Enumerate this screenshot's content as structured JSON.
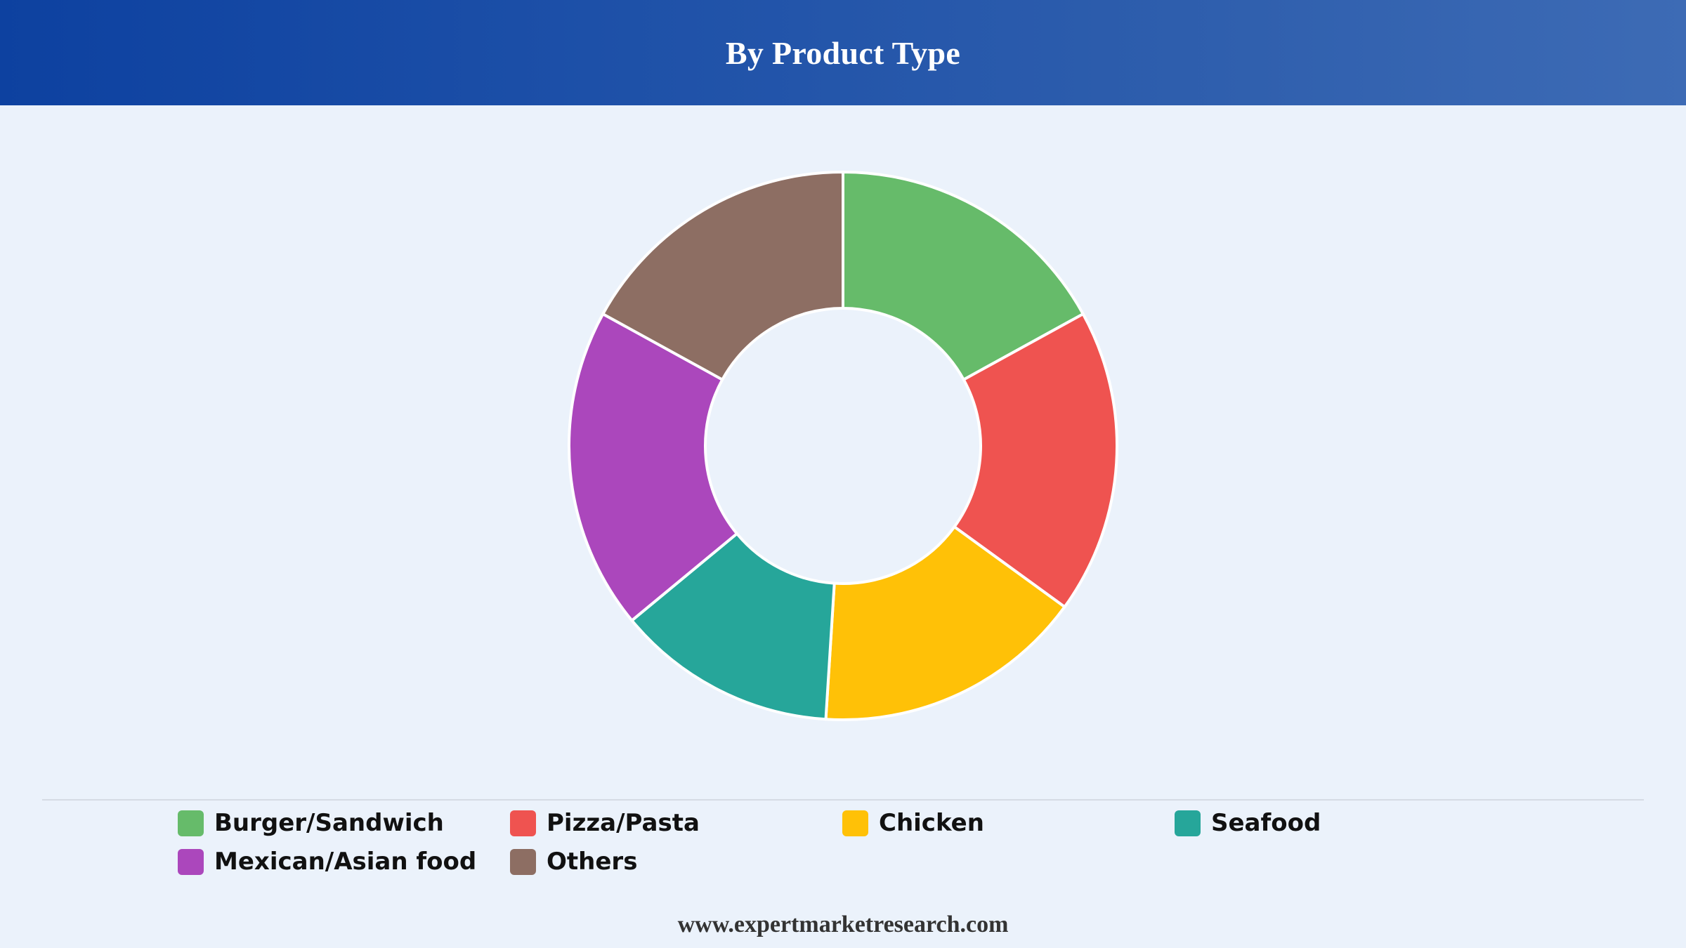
{
  "header": {
    "title": "By Product Type"
  },
  "chart_data": {
    "type": "pie",
    "donut": true,
    "title": "By Product Type",
    "categories": [
      "Burger/Sandwich",
      "Pizza/Pasta",
      "Chicken",
      "Seafood",
      "Mexican/Asian food",
      "Others"
    ],
    "values": [
      17,
      18,
      16,
      13,
      19,
      17
    ],
    "colors": [
      "#66bb6a",
      "#ef5350",
      "#ffc107",
      "#26a69a",
      "#ab47bc",
      "#8d6e63"
    ],
    "legend_placement": "bottom"
  },
  "legend": {
    "items": [
      {
        "label": "Burger/Sandwich",
        "color": "#66bb6a"
      },
      {
        "label": "Pizza/Pasta",
        "color": "#ef5350"
      },
      {
        "label": "Chicken",
        "color": "#ffc107"
      },
      {
        "label": "Seafood",
        "color": "#26a69a"
      },
      {
        "label": "Mexican/Asian food",
        "color": "#ab47bc"
      },
      {
        "label": "Others",
        "color": "#8d6e63"
      }
    ]
  },
  "footer": {
    "website": "www.expertmarketresearch.com"
  }
}
